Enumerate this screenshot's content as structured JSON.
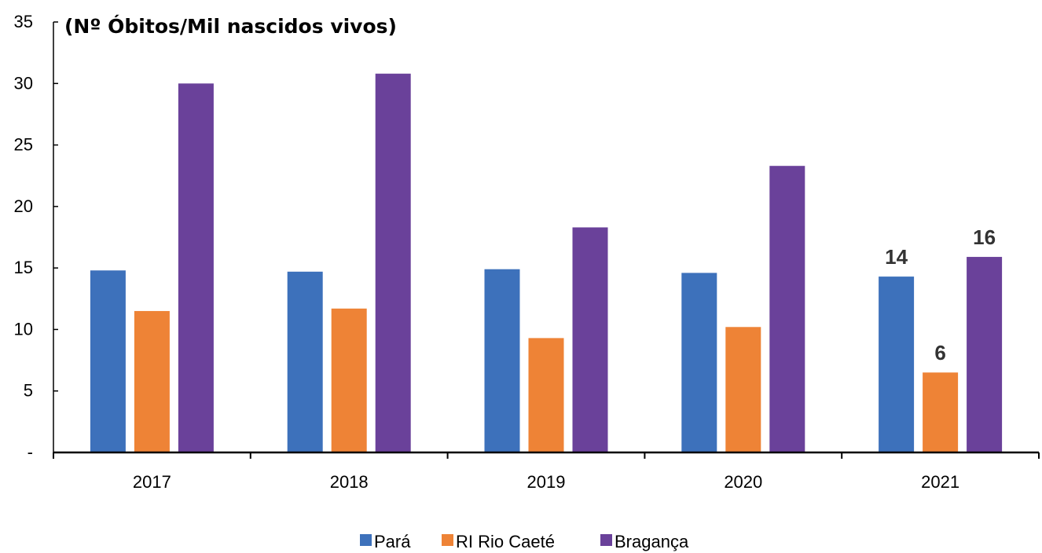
{
  "chart_data": {
    "type": "bar",
    "title": "(Nº Óbitos/Mil nascidos vivos)",
    "categories": [
      "2017",
      "2018",
      "2019",
      "2020",
      "2021"
    ],
    "series": [
      {
        "name": "Pará",
        "color": "#3d71bb",
        "values": [
          14.8,
          14.7,
          14.9,
          14.6,
          14.3
        ]
      },
      {
        "name": "RI Rio Caeté",
        "color": "#ee8336",
        "values": [
          11.5,
          11.7,
          9.3,
          10.2,
          6.5
        ]
      },
      {
        "name": "Bragança",
        "color": "#6a419a",
        "values": [
          30.0,
          30.8,
          18.3,
          23.3,
          15.9
        ]
      }
    ],
    "data_labels": [
      {
        "category": "2021",
        "series": "Pará",
        "text": "14"
      },
      {
        "category": "2021",
        "series": "RI Rio Caeté",
        "text": "6"
      },
      {
        "category": "2021",
        "series": "Bragança",
        "text": "16"
      }
    ],
    "ylim": [
      0,
      35
    ],
    "yticks": [
      {
        "value": 0,
        "label": "-"
      },
      {
        "value": 5,
        "label": "5"
      },
      {
        "value": 10,
        "label": "10"
      },
      {
        "value": 15,
        "label": "15"
      },
      {
        "value": 20,
        "label": "20"
      },
      {
        "value": 25,
        "label": "25"
      },
      {
        "value": 30,
        "label": "30"
      },
      {
        "value": 35,
        "label": "35"
      }
    ],
    "grid": false,
    "legend_position": "bottom"
  }
}
